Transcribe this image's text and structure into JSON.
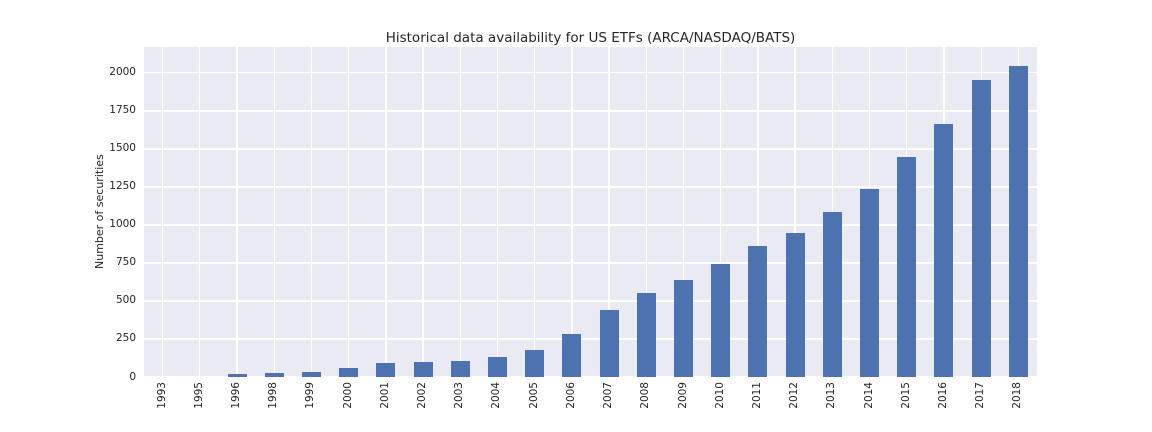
{
  "chart_data": {
    "type": "bar",
    "title": "Historical data availability for US ETFs (ARCA/NASDAQ/BATS)",
    "xlabel": "",
    "ylabel": "Number of securities",
    "categories": [
      "1993",
      "1995",
      "1996",
      "1998",
      "1999",
      "2000",
      "2001",
      "2002",
      "2003",
      "2004",
      "2005",
      "2006",
      "2007",
      "2008",
      "2009",
      "2010",
      "2011",
      "2012",
      "2013",
      "2014",
      "2015",
      "2016",
      "2017",
      "2018"
    ],
    "values": [
      1,
      2,
      18,
      26,
      33,
      62,
      90,
      98,
      107,
      133,
      180,
      280,
      440,
      552,
      640,
      745,
      860,
      948,
      1082,
      1235,
      1447,
      1663,
      1950,
      2045
    ],
    "yticks": [
      0,
      250,
      500,
      750,
      1000,
      1250,
      1500,
      1750,
      2000
    ],
    "ylim": [
      0,
      2170
    ],
    "grid": true,
    "legend_position": "none",
    "colors": {
      "bar": "#4c72b0",
      "plot_background": "#eaeaf2",
      "gridline": "#ffffff",
      "text": "#262626",
      "figure_background": "#ffffff"
    }
  }
}
